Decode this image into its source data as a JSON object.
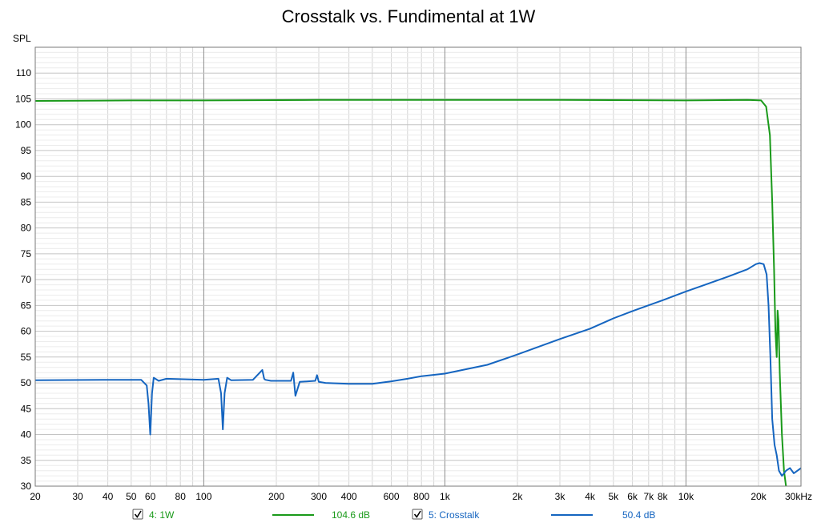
{
  "chart_data": {
    "type": "line",
    "title": "Crosstalk vs. Fundimental at 1W",
    "ylabel": "SPL",
    "xlabel": "",
    "x_scale": "log",
    "xlim": [
      20,
      30000
    ],
    "ylim": [
      30,
      115
    ],
    "grid": true,
    "x_tick_labels": [
      {
        "v": 20,
        "t": "20"
      },
      {
        "v": 30,
        "t": "30"
      },
      {
        "v": 40,
        "t": "40"
      },
      {
        "v": 50,
        "t": "50"
      },
      {
        "v": 60,
        "t": "60"
      },
      {
        "v": 80,
        "t": "80"
      },
      {
        "v": 100,
        "t": "100"
      },
      {
        "v": 200,
        "t": "200"
      },
      {
        "v": 300,
        "t": "300"
      },
      {
        "v": 400,
        "t": "400"
      },
      {
        "v": 600,
        "t": "600"
      },
      {
        "v": 800,
        "t": "800"
      },
      {
        "v": 1000,
        "t": "1k"
      },
      {
        "v": 2000,
        "t": "2k"
      },
      {
        "v": 3000,
        "t": "3k"
      },
      {
        "v": 4000,
        "t": "4k"
      },
      {
        "v": 5000,
        "t": "5k"
      },
      {
        "v": 6000,
        "t": "6k"
      },
      {
        "v": 7000,
        "t": "7k"
      },
      {
        "v": 8000,
        "t": "8k"
      },
      {
        "v": 10000,
        "t": "10k"
      },
      {
        "v": 20000,
        "t": "20k"
      },
      {
        "v": 30000,
        "t": "30kHz"
      }
    ],
    "y_ticks": [
      30,
      35,
      40,
      45,
      50,
      55,
      60,
      65,
      70,
      75,
      80,
      85,
      90,
      95,
      100,
      105,
      110
    ],
    "series": [
      {
        "name": "4: 1W",
        "color": "#1a9a1a",
        "legend_value": "104.6 dB",
        "x": [
          20,
          50,
          100,
          300,
          1000,
          3000,
          10000,
          18000,
          20500,
          21500,
          22300,
          22800,
          23200,
          23500,
          23800,
          24000,
          24200,
          24500,
          25000,
          25500,
          26000
        ],
        "y": [
          104.6,
          104.7,
          104.7,
          104.8,
          104.8,
          104.8,
          104.7,
          104.8,
          104.7,
          103.5,
          98,
          85,
          72,
          60,
          55,
          64,
          62,
          52,
          40,
          33,
          30
        ]
      },
      {
        "name": "5: Crosstalk",
        "color": "#1565c0",
        "legend_value": "50.4 dB",
        "x": [
          20,
          40,
          55,
          58,
          59,
          60,
          61,
          62,
          65,
          70,
          100,
          115,
          118,
          120,
          122,
          125,
          130,
          160,
          175,
          178,
          180,
          190,
          230,
          235,
          240,
          250,
          290,
          295,
          300,
          320,
          400,
          500,
          600,
          700,
          800,
          1000,
          1500,
          2000,
          3000,
          4000,
          5000,
          6000,
          8000,
          10000,
          12000,
          15000,
          18000,
          19500,
          20200,
          21000,
          21600,
          22000,
          22400,
          22800,
          23300,
          23800,
          24300,
          25000,
          26000,
          27000,
          28000,
          29000,
          30000
        ],
        "y": [
          50.5,
          50.6,
          50.6,
          49.5,
          46,
          40,
          48,
          51,
          50.4,
          50.8,
          50.6,
          50.8,
          48,
          41,
          48,
          51,
          50.5,
          50.6,
          52.5,
          50.8,
          50.6,
          50.4,
          50.4,
          52,
          47.5,
          50.2,
          50.4,
          51.5,
          50.2,
          50,
          49.8,
          49.8,
          50.3,
          50.8,
          51.3,
          51.8,
          53.5,
          55.5,
          58.5,
          60.5,
          62.5,
          63.9,
          66,
          67.7,
          69,
          70.6,
          72,
          73,
          73.2,
          73,
          71,
          65,
          55,
          43,
          38,
          36,
          33,
          32,
          33,
          33.5,
          32.5,
          33,
          33.5
        ]
      }
    ],
    "legend": {
      "placement": "bottom"
    }
  }
}
